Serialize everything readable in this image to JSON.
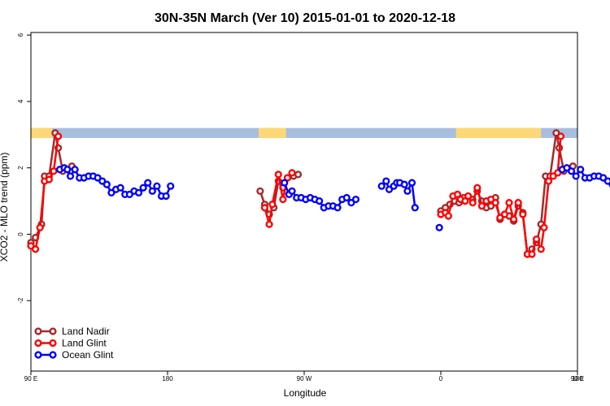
{
  "chart_data": {
    "type": "line",
    "title": "30N-35N March (Ver 10)   2015-01-01 to 2020-12-18",
    "xlabel": "Longitude",
    "ylabel": "XCO2 - MLO trend (ppm)",
    "xlim": [
      90,
      450
    ],
    "ylim": [
      -4,
      6.2
    ],
    "x_tick_positions": [
      90,
      180,
      270,
      360,
      450,
      540
    ],
    "x_tick_labels": [
      "90 E",
      "180",
      "90 W",
      "0",
      "90 E",
      "180"
    ],
    "y_ticks": [
      -2,
      0,
      2,
      4,
      6
    ],
    "legend_position": "bottom-left",
    "land_ocean_band": {
      "y_range": [
        2.9,
        3.2
      ],
      "land_color": "#FDD876",
      "ocean_color": "#A8BEDF",
      "land_intervals": [
        [
          90,
          104
        ],
        [
          240,
          258
        ],
        [
          370,
          426
        ],
        [
          484,
          536
        ]
      ]
    },
    "series": [
      {
        "name": "Land Nadir",
        "color": "#A52A2A",
        "points": [
          [
            90,
            -0.25
          ],
          [
            93,
            -0.1
          ],
          [
            97,
            0.3
          ],
          [
            99,
            1.75
          ],
          [
            102,
            1.75
          ],
          [
            106,
            3.05
          ],
          [
            108,
            2.6
          ],
          [
            111,
            1.9
          ],
          [
            117,
            2.05
          ],
          [
            241,
            1.3
          ],
          [
            244,
            0.9
          ],
          [
            247,
            0.6
          ],
          [
            250,
            0.8
          ],
          [
            253,
            1.6
          ],
          [
            256,
            1.4
          ],
          [
            259,
            1.7
          ],
          [
            263,
            1.75
          ],
          [
            266,
            1.8
          ],
          [
            360,
            0.7
          ],
          [
            363,
            0.8
          ],
          [
            366,
            0.9
          ],
          [
            369,
            1.0
          ],
          [
            372,
            0.95
          ],
          [
            375,
            1.1
          ],
          [
            378,
            1.15
          ],
          [
            381,
            1.05
          ],
          [
            384,
            1.3
          ],
          [
            387,
            1.0
          ],
          [
            390,
            0.8
          ],
          [
            393,
            0.85
          ],
          [
            396,
            1.1
          ],
          [
            399,
            0.45
          ],
          [
            402,
            0.6
          ],
          [
            405,
            0.55
          ],
          [
            408,
            0.4
          ],
          [
            411,
            0.85
          ],
          [
            414,
            0.65
          ],
          [
            417,
            -0.6
          ],
          [
            420,
            -0.45
          ],
          [
            423,
            -0.25
          ],
          [
            426,
            0.3
          ],
          [
            429,
            1.75
          ],
          [
            432,
            1.75
          ],
          [
            436,
            3.05
          ],
          [
            438,
            2.6
          ],
          [
            441,
            1.9
          ],
          [
            447,
            2.05
          ]
        ]
      },
      {
        "name": "Land Glint",
        "color": "#FF0000",
        "points": [
          [
            90,
            -0.35
          ],
          [
            93,
            -0.45
          ],
          [
            96,
            0.2
          ],
          [
            99,
            1.6
          ],
          [
            102,
            1.65
          ],
          [
            105,
            1.9
          ],
          [
            108,
            2.95
          ],
          [
            244,
            0.8
          ],
          [
            247,
            0.3
          ],
          [
            249,
            0.9
          ],
          [
            253,
            1.8
          ],
          [
            256,
            1.05
          ],
          [
            259,
            1.7
          ],
          [
            262,
            1.85
          ],
          [
            360,
            0.6
          ],
          [
            363,
            0.65
          ],
          [
            365,
            0.55
          ],
          [
            368,
            1.15
          ],
          [
            371,
            1.2
          ],
          [
            373,
            1.05
          ],
          [
            376,
            1.0
          ],
          [
            378,
            1.15
          ],
          [
            381,
            0.95
          ],
          [
            384,
            1.4
          ],
          [
            387,
            0.85
          ],
          [
            390,
            1.0
          ],
          [
            393,
            1.05
          ],
          [
            396,
            0.95
          ],
          [
            399,
            0.5
          ],
          [
            402,
            0.6
          ],
          [
            405,
            0.95
          ],
          [
            408,
            0.45
          ],
          [
            411,
            0.95
          ],
          [
            414,
            0.6
          ],
          [
            417,
            -0.6
          ],
          [
            420,
            -0.6
          ],
          [
            423,
            -0.15
          ],
          [
            426,
            -0.45
          ],
          [
            428,
            0.2
          ],
          [
            431,
            1.6
          ],
          [
            434,
            1.75
          ],
          [
            437,
            1.85
          ],
          [
            439,
            2.95
          ]
        ]
      },
      {
        "name": "Ocean Glint",
        "color": "#0000FF",
        "points": [
          [
            109,
            1.95
          ],
          [
            112,
            2.0
          ],
          [
            114,
            1.95
          ],
          [
            116,
            1.75
          ],
          [
            119,
            1.95
          ],
          [
            122,
            1.7
          ],
          [
            125,
            1.7
          ],
          [
            128,
            1.75
          ],
          [
            131,
            1.75
          ],
          [
            134,
            1.7
          ],
          [
            137,
            1.6
          ],
          [
            140,
            1.5
          ],
          [
            143,
            1.25
          ],
          [
            146,
            1.35
          ],
          [
            149,
            1.4
          ],
          [
            152,
            1.2
          ],
          [
            155,
            1.2
          ],
          [
            158,
            1.3
          ],
          [
            161,
            1.25
          ],
          [
            164,
            1.4
          ],
          [
            167,
            1.55
          ],
          [
            170,
            1.3
          ],
          [
            173,
            1.45
          ],
          [
            176,
            1.15
          ],
          [
            179,
            1.15
          ],
          [
            182,
            1.45
          ],
          [
            257,
            1.55
          ],
          [
            260,
            1.2
          ],
          [
            262,
            1.3
          ],
          [
            265,
            1.1
          ],
          [
            268,
            1.1
          ],
          [
            271,
            1.05
          ],
          [
            274,
            1.1
          ],
          [
            277,
            1.05
          ],
          [
            280,
            1.0
          ],
          [
            283,
            0.8
          ],
          [
            286,
            0.85
          ],
          [
            289,
            0.85
          ],
          [
            292,
            0.8
          ],
          [
            295,
            1.05
          ],
          [
            298,
            1.1
          ],
          [
            301,
            0.95
          ],
          [
            304,
            1.05
          ],
          [
            321,
            1.45
          ],
          [
            324,
            1.6
          ],
          [
            326,
            1.35
          ],
          [
            329,
            1.45
          ],
          [
            331,
            1.55
          ],
          [
            333,
            1.55
          ],
          [
            336,
            1.5
          ],
          [
            338,
            1.3
          ],
          [
            341,
            1.55
          ],
          [
            343,
            0.8
          ],
          [
            359,
            0.2
          ],
          [
            440,
            1.95
          ],
          [
            443,
            2.0
          ],
          [
            446,
            1.9
          ],
          [
            449,
            1.75
          ],
          [
            452,
            1.95
          ],
          [
            455,
            1.7
          ],
          [
            458,
            1.7
          ],
          [
            461,
            1.75
          ],
          [
            464,
            1.75
          ],
          [
            467,
            1.7
          ],
          [
            470,
            1.6
          ],
          [
            473,
            1.5
          ]
        ]
      }
    ]
  }
}
